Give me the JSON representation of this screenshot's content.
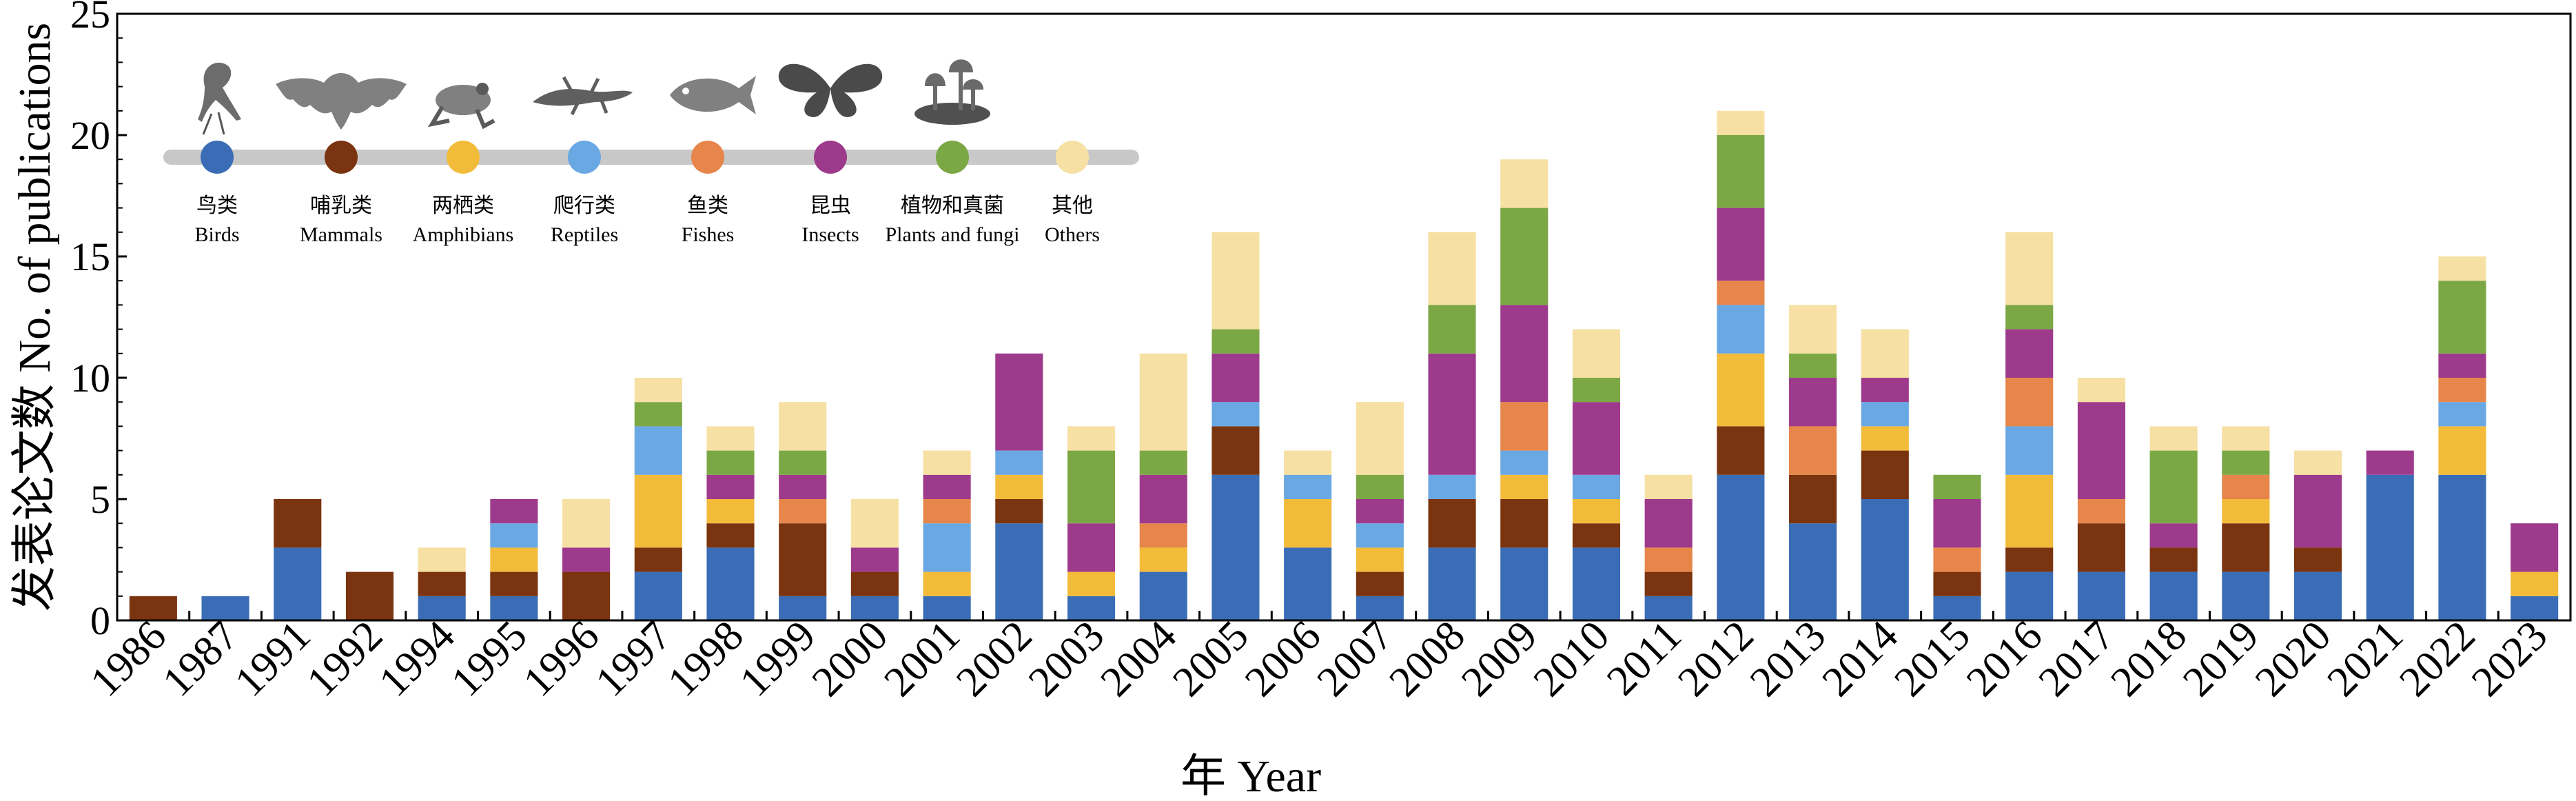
{
  "chart_data": {
    "type": "bar",
    "stacked": true,
    "xlabel": "年 Year",
    "ylabel": "发表论文数 No. of publications",
    "ylim": [
      0,
      25
    ],
    "yticks": [
      0,
      5,
      10,
      15,
      20,
      25
    ],
    "grid": false,
    "legend_position": "top-left",
    "categories": [
      "1986",
      "1987",
      "1991",
      "1992",
      "1994",
      "1995",
      "1996",
      "1997",
      "1998",
      "1999",
      "2000",
      "2001",
      "2002",
      "2003",
      "2004",
      "2005",
      "2006",
      "2007",
      "2008",
      "2009",
      "2010",
      "2011",
      "2012",
      "2013",
      "2014",
      "2015",
      "2016",
      "2017",
      "2018",
      "2019",
      "2020",
      "2021",
      "2022",
      "2023"
    ],
    "series": [
      {
        "name": "鸟类 Birds",
        "name_zh": "鸟类",
        "name_en": "Birds",
        "color": "#3a6db5",
        "icon": "bird-icon",
        "values": [
          0,
          1,
          3,
          0,
          1,
          1,
          0,
          2,
          3,
          1,
          1,
          1,
          4,
          1,
          2,
          6,
          3,
          1,
          3,
          3,
          3,
          1,
          6,
          4,
          5,
          1,
          2,
          2,
          2,
          2,
          2,
          6,
          6,
          1
        ]
      },
      {
        "name": "哺乳类 Mammals",
        "name_zh": "哺乳类",
        "name_en": "Mammals",
        "color": "#7b3410",
        "icon": "bat-icon",
        "values": [
          1,
          0,
          2,
          2,
          1,
          1,
          2,
          1,
          1,
          3,
          1,
          0,
          1,
          0,
          0,
          2,
          0,
          1,
          2,
          2,
          1,
          1,
          2,
          2,
          2,
          1,
          1,
          2,
          1,
          2,
          1,
          0,
          0,
          0
        ]
      },
      {
        "name": "两栖类 Amphibians",
        "name_zh": "两栖类",
        "name_en": "Amphibians",
        "color": "#f2bb3a",
        "icon": "frog-icon",
        "values": [
          0,
          0,
          0,
          0,
          0,
          1,
          0,
          3,
          1,
          0,
          0,
          1,
          1,
          1,
          1,
          0,
          2,
          1,
          0,
          1,
          1,
          0,
          3,
          0,
          1,
          0,
          3,
          0,
          0,
          1,
          0,
          0,
          2,
          1
        ]
      },
      {
        "name": "爬行类 Reptiles",
        "name_zh": "爬行类",
        "name_en": "Reptiles",
        "color": "#6aa8e4",
        "icon": "lizard-icon",
        "values": [
          0,
          0,
          0,
          0,
          0,
          1,
          0,
          2,
          0,
          0,
          0,
          2,
          1,
          0,
          0,
          1,
          1,
          1,
          1,
          1,
          1,
          0,
          2,
          0,
          1,
          0,
          2,
          0,
          0,
          0,
          0,
          0,
          1,
          0
        ]
      },
      {
        "name": "鱼类 Fishes",
        "name_zh": "鱼类",
        "name_en": "Fishes",
        "color": "#e6864a",
        "icon": "fish-icon",
        "values": [
          0,
          0,
          0,
          0,
          0,
          0,
          0,
          0,
          0,
          1,
          0,
          1,
          0,
          0,
          1,
          0,
          0,
          0,
          0,
          2,
          0,
          1,
          1,
          2,
          0,
          1,
          2,
          1,
          0,
          1,
          0,
          0,
          1,
          0
        ]
      },
      {
        "name": "昆虫 Insects",
        "name_zh": "昆虫",
        "name_en": "Insects",
        "color": "#9e3a8c",
        "icon": "butterfly-icon",
        "values": [
          0,
          0,
          0,
          0,
          0,
          1,
          1,
          0,
          1,
          1,
          1,
          1,
          4,
          2,
          2,
          2,
          0,
          1,
          5,
          4,
          3,
          2,
          3,
          2,
          1,
          2,
          2,
          4,
          1,
          0,
          3,
          1,
          1,
          2
        ]
      },
      {
        "name": "植物和真菌 Plants and fungi",
        "name_zh": "植物和真菌",
        "name_en": "Plants and fungi",
        "color": "#7ba845",
        "icon": "mushroom-icon",
        "values": [
          0,
          0,
          0,
          0,
          0,
          0,
          0,
          1,
          1,
          1,
          0,
          0,
          0,
          3,
          1,
          1,
          0,
          1,
          2,
          4,
          1,
          0,
          3,
          1,
          0,
          1,
          1,
          0,
          3,
          1,
          0,
          0,
          3,
          0
        ]
      },
      {
        "name": "其他 Others",
        "name_zh": "其他",
        "name_en": "Others",
        "color": "#f7e0a3",
        "icon": "",
        "values": [
          0,
          0,
          0,
          0,
          1,
          0,
          2,
          1,
          1,
          2,
          2,
          1,
          0,
          1,
          4,
          4,
          1,
          3,
          3,
          2,
          2,
          1,
          1,
          2,
          2,
          0,
          3,
          1,
          1,
          1,
          1,
          0,
          1,
          0
        ]
      }
    ]
  }
}
